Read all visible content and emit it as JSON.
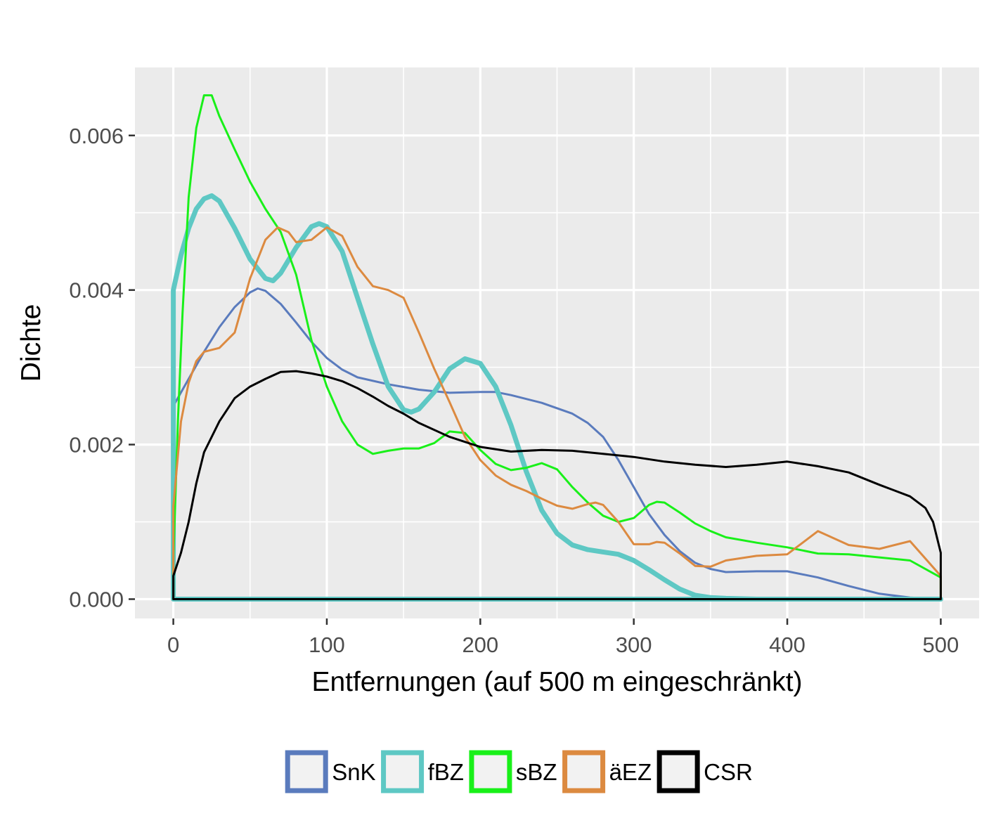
{
  "chart_data": {
    "type": "line",
    "subtype": "density",
    "xlabel": "Entfernungen (auf 500 m eingeschränkt)",
    "ylabel": "Dichte",
    "xlim": [
      -25,
      525
    ],
    "ylim": [
      -0.00025,
      0.00688
    ],
    "x_ticks": [
      0,
      100,
      200,
      300,
      400,
      500
    ],
    "x_tick_labels": [
      "0",
      "100",
      "200",
      "300",
      "400",
      "500"
    ],
    "y_ticks": [
      0,
      0.002,
      0.004,
      0.006
    ],
    "y_tick_labels": [
      "0.000",
      "0.002",
      "0.004",
      "0.006"
    ],
    "grid": true,
    "legend_position": "bottom",
    "series": [
      {
        "name": "SnK",
        "color": "#5a7bbd",
        "stroke": 3,
        "x": [
          0,
          10,
          20,
          30,
          40,
          50,
          55,
          60,
          70,
          80,
          90,
          100,
          110,
          120,
          140,
          160,
          180,
          200,
          210,
          220,
          240,
          260,
          270,
          280,
          290,
          300,
          310,
          320,
          330,
          340,
          350,
          360,
          380,
          400,
          420,
          440,
          460,
          480,
          500
        ],
        "y": [
          0.0025,
          0.00285,
          0.0032,
          0.00352,
          0.00378,
          0.00397,
          0.00402,
          0.00399,
          0.00382,
          0.00358,
          0.00333,
          0.00312,
          0.00297,
          0.00287,
          0.00278,
          0.00271,
          0.00267,
          0.00268,
          0.00268,
          0.00264,
          0.00254,
          0.0024,
          0.00228,
          0.0021,
          0.0018,
          0.00145,
          0.0011,
          0.00083,
          0.00062,
          0.00047,
          0.00039,
          0.00035,
          0.00036,
          0.00036,
          0.00028,
          0.00017,
          7e-05,
          2e-05,
          0.0
        ]
      },
      {
        "name": "fBZ",
        "color": "#5ec8c4",
        "stroke": 7,
        "x": [
          0,
          5,
          10,
          15,
          20,
          25,
          30,
          40,
          50,
          60,
          65,
          70,
          80,
          90,
          95,
          100,
          110,
          120,
          130,
          140,
          150,
          155,
          160,
          170,
          180,
          190,
          200,
          210,
          220,
          230,
          240,
          250,
          260,
          270,
          280,
          290,
          300,
          310,
          320,
          330,
          340,
          350,
          360,
          380,
          400,
          420,
          440,
          460,
          480,
          500
        ],
        "y": [
          0.004,
          0.00445,
          0.0048,
          0.00505,
          0.00518,
          0.00522,
          0.00515,
          0.0048,
          0.0044,
          0.00415,
          0.00412,
          0.00422,
          0.00455,
          0.00482,
          0.00486,
          0.00482,
          0.0045,
          0.0039,
          0.0033,
          0.00275,
          0.00245,
          0.00242,
          0.00246,
          0.00268,
          0.00298,
          0.00311,
          0.00305,
          0.00275,
          0.00225,
          0.00165,
          0.00115,
          0.00085,
          0.0007,
          0.00064,
          0.00061,
          0.00058,
          0.0005,
          0.00038,
          0.00025,
          0.00013,
          5e-05,
          2e-05,
          1e-05,
          0.0,
          0.0,
          0.0,
          0.0,
          0.0,
          0.0,
          0.0
        ]
      },
      {
        "name": "sBZ",
        "color": "#19f019",
        "stroke": 3,
        "x": [
          0,
          3,
          6,
          10,
          15,
          20,
          25,
          30,
          40,
          50,
          60,
          70,
          80,
          90,
          100,
          110,
          120,
          130,
          140,
          150,
          160,
          170,
          180,
          190,
          200,
          210,
          220,
          230,
          240,
          250,
          260,
          270,
          280,
          290,
          300,
          310,
          315,
          320,
          330,
          340,
          350,
          360,
          380,
          400,
          420,
          440,
          460,
          480,
          500
        ],
        "y": [
          0.0005,
          0.0023,
          0.0037,
          0.0052,
          0.0061,
          0.00652,
          0.00652,
          0.00625,
          0.00582,
          0.0054,
          0.00505,
          0.00475,
          0.0042,
          0.00335,
          0.00275,
          0.0023,
          0.002,
          0.00188,
          0.00192,
          0.00195,
          0.00195,
          0.00202,
          0.00217,
          0.00215,
          0.00193,
          0.00175,
          0.00167,
          0.0017,
          0.00176,
          0.00168,
          0.00145,
          0.00125,
          0.00108,
          0.001,
          0.00105,
          0.00122,
          0.00126,
          0.00125,
          0.00112,
          0.00098,
          0.00088,
          0.0008,
          0.00073,
          0.00067,
          0.00059,
          0.00058,
          0.00054,
          0.0005,
          0.00028
        ]
      },
      {
        "name": "äEZ",
        "color": "#dc8a40",
        "stroke": 3,
        "x": [
          0,
          5,
          10,
          15,
          20,
          30,
          40,
          50,
          60,
          68,
          75,
          80,
          90,
          100,
          110,
          120,
          130,
          140,
          150,
          160,
          170,
          180,
          190,
          200,
          210,
          220,
          230,
          240,
          250,
          260,
          270,
          275,
          280,
          290,
          300,
          310,
          315,
          320,
          330,
          340,
          350,
          360,
          380,
          400,
          420,
          440,
          460,
          480,
          500
        ],
        "y": [
          0.0012,
          0.0023,
          0.0028,
          0.00308,
          0.0032,
          0.00325,
          0.00345,
          0.00415,
          0.00465,
          0.00481,
          0.00475,
          0.00462,
          0.00465,
          0.00481,
          0.0047,
          0.0043,
          0.00405,
          0.004,
          0.0039,
          0.00345,
          0.00298,
          0.00255,
          0.0021,
          0.0018,
          0.0016,
          0.00148,
          0.0014,
          0.0013,
          0.00121,
          0.00117,
          0.00123,
          0.00125,
          0.00122,
          0.001,
          0.00071,
          0.00071,
          0.00074,
          0.00073,
          0.00059,
          0.00043,
          0.00042,
          0.0005,
          0.00056,
          0.00058,
          0.00088,
          0.0007,
          0.00065,
          0.00075,
          0.0003
        ]
      },
      {
        "name": "CSR",
        "color": "#000000",
        "stroke": 3,
        "x": [
          0,
          5,
          10,
          15,
          20,
          30,
          40,
          50,
          60,
          70,
          80,
          90,
          100,
          110,
          120,
          130,
          140,
          150,
          160,
          180,
          200,
          220,
          240,
          260,
          280,
          300,
          320,
          340,
          360,
          380,
          400,
          420,
          440,
          460,
          480,
          490,
          495,
          500,
          500
        ],
        "y": [
          0.0003,
          0.0006,
          0.001,
          0.0015,
          0.0019,
          0.0023,
          0.0026,
          0.00275,
          0.00285,
          0.00294,
          0.00295,
          0.00292,
          0.00288,
          0.00282,
          0.00273,
          0.00262,
          0.0025,
          0.0024,
          0.00228,
          0.0021,
          0.00197,
          0.00191,
          0.00193,
          0.00192,
          0.00188,
          0.00184,
          0.00178,
          0.00174,
          0.00171,
          0.00174,
          0.00178,
          0.00172,
          0.00164,
          0.00148,
          0.00133,
          0.00118,
          0.001,
          0.0006,
          0.0
        ]
      }
    ]
  }
}
